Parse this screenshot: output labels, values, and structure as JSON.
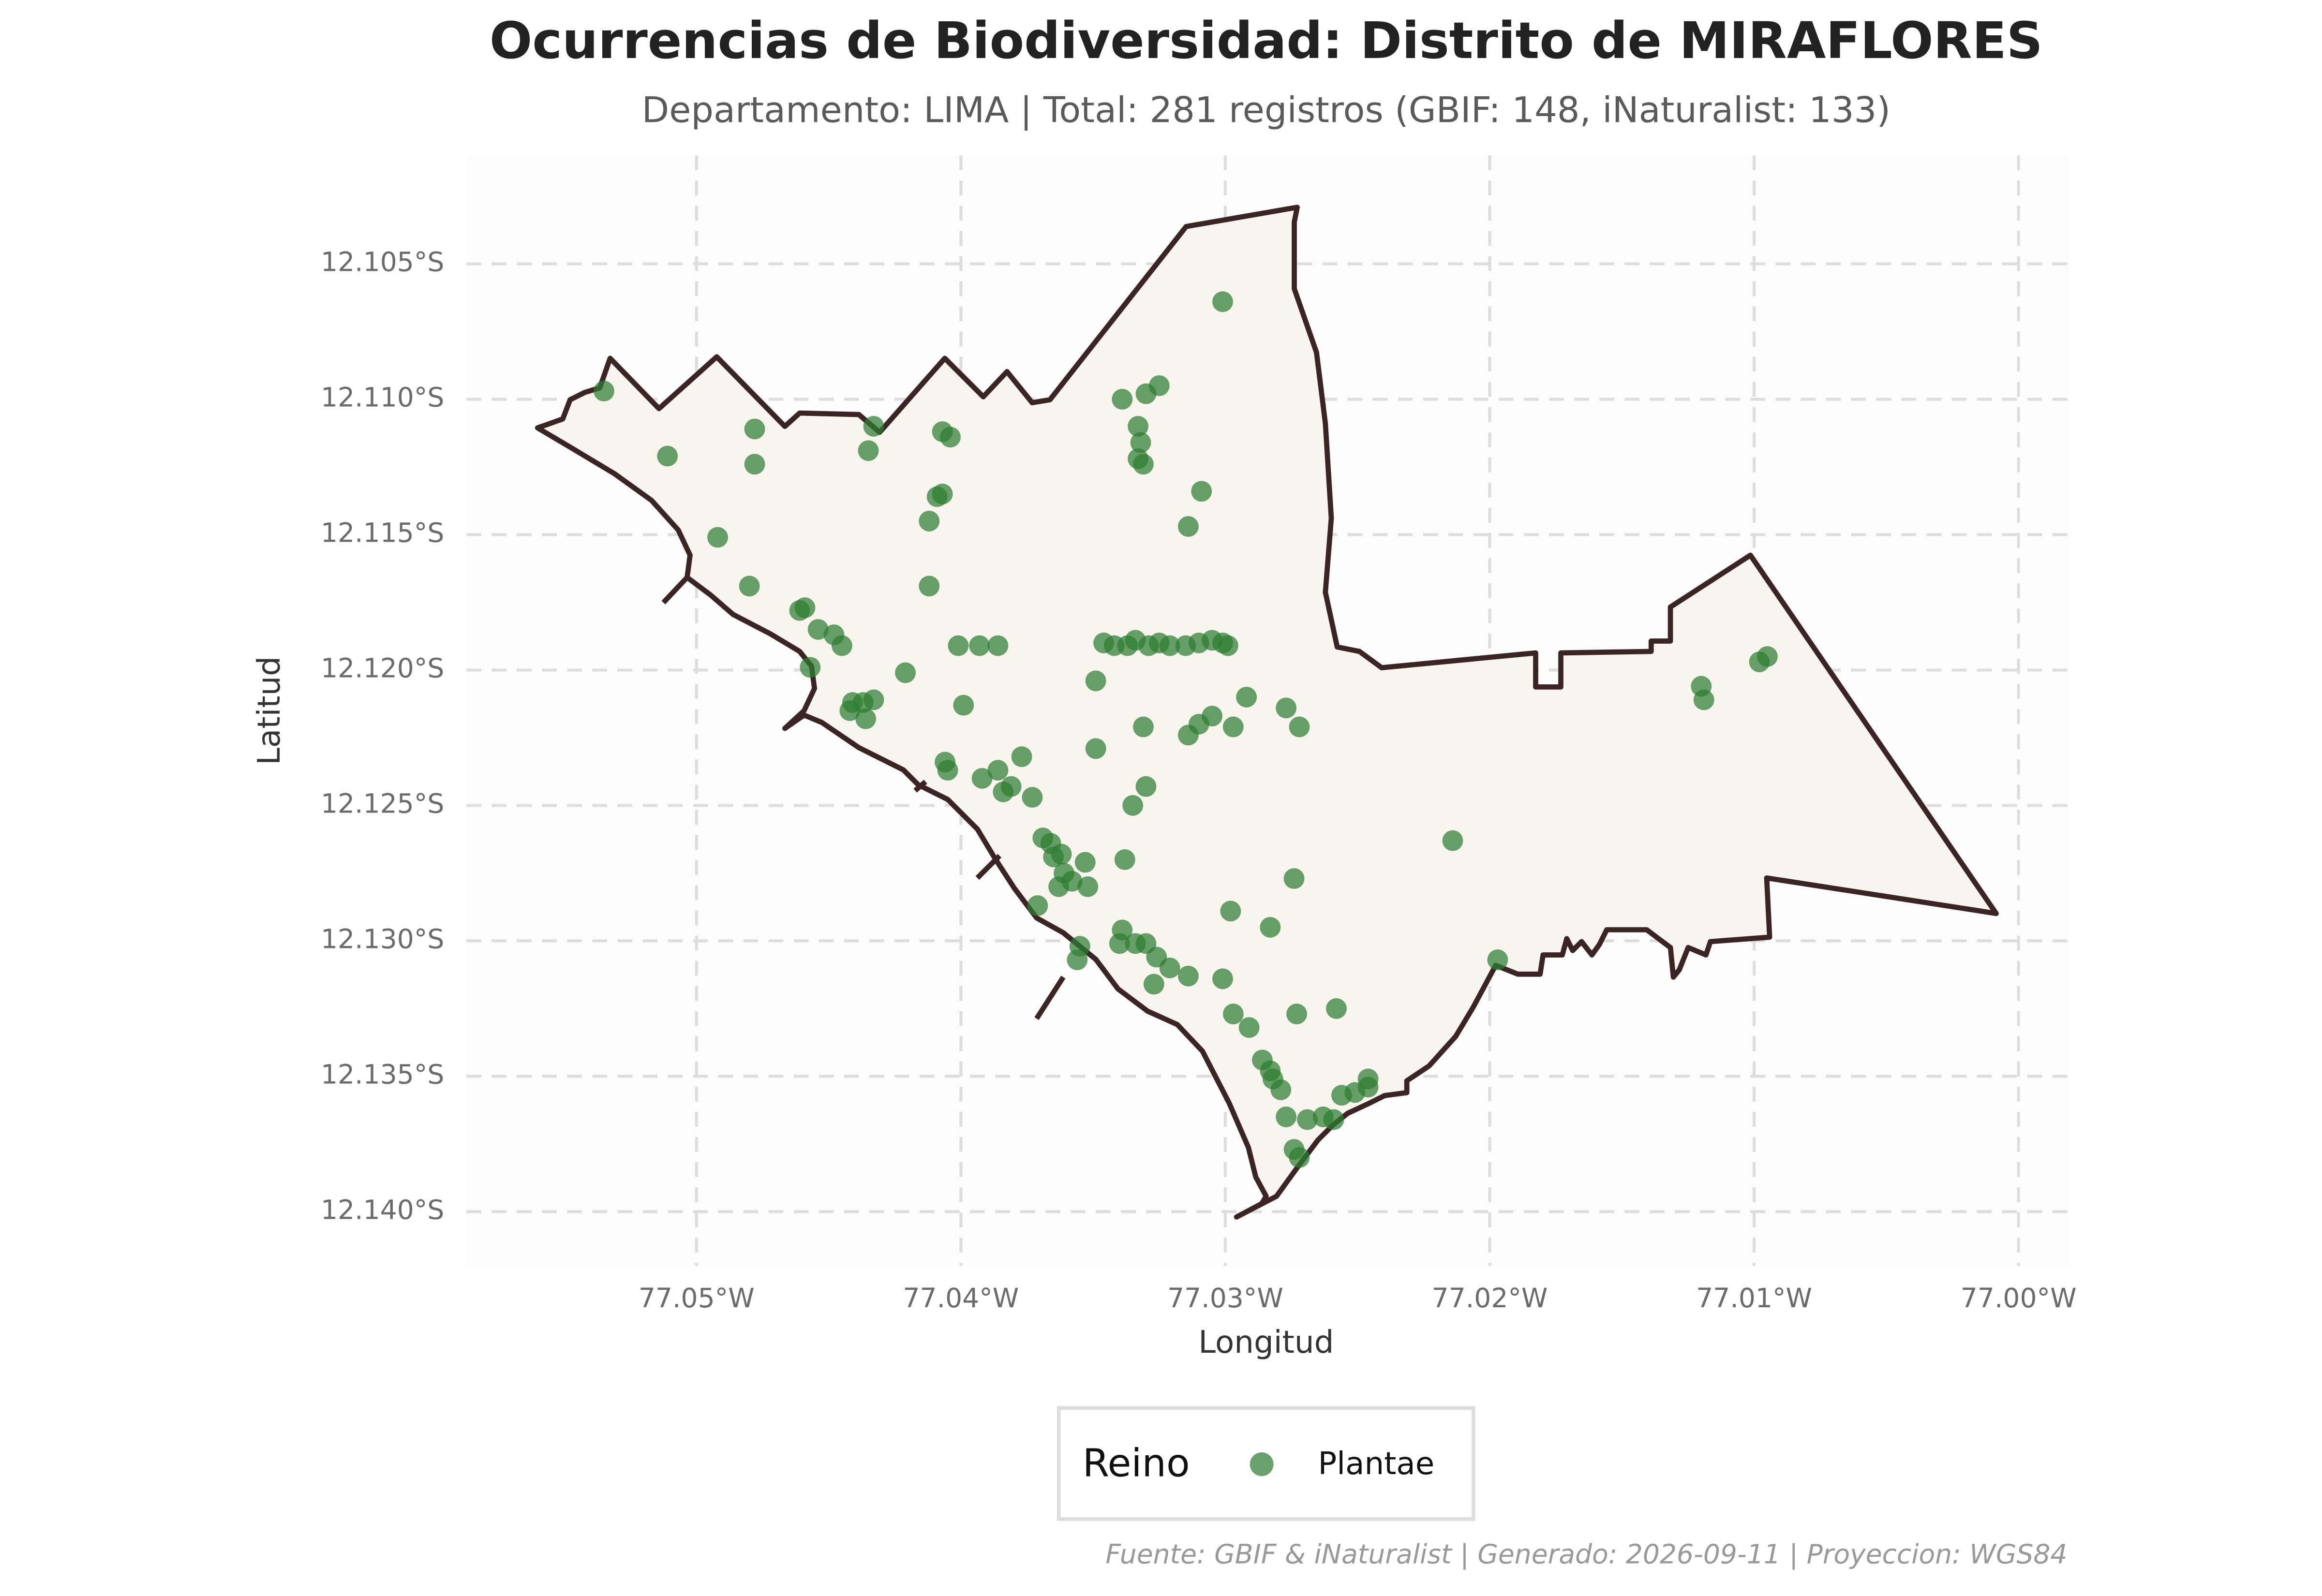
{
  "chart_data": {
    "type": "scatter",
    "title": "Ocurrencias de Biodiversidad: Distrito de MIRAFLORES",
    "subtitle": "Departamento: LIMA | Total: 281 registros (GBIF: 148, iNaturalist: 133)",
    "xlabel": "Longitud",
    "ylabel": "Latitud",
    "footnote": "Fuente: GBIF & iNaturalist | Generado: 2026-09-11 | Proyeccion: WGS84",
    "legend_title": "Reino",
    "legend": "bottom",
    "grid": true,
    "xlim": [
      -77.0587,
      -76.9981
    ],
    "ylim": [
      -12.142,
      -12.101
    ],
    "xticks": [
      {
        "value": -77.05,
        "label": "77.05°W"
      },
      {
        "value": -77.04,
        "label": "77.04°W"
      },
      {
        "value": -77.03,
        "label": "77.03°W"
      },
      {
        "value": -77.02,
        "label": "77.02°W"
      },
      {
        "value": -77.01,
        "label": "77.01°W"
      },
      {
        "value": -77.0,
        "label": "77.00°W"
      }
    ],
    "yticks": [
      {
        "value": -12.105,
        "label": "12.105°S"
      },
      {
        "value": -12.11,
        "label": "12.110°S"
      },
      {
        "value": -12.115,
        "label": "12.115°S"
      },
      {
        "value": -12.12,
        "label": "12.120°S"
      },
      {
        "value": -12.125,
        "label": "12.125°S"
      },
      {
        "value": -12.13,
        "label": "12.130°S"
      },
      {
        "value": -12.135,
        "label": "12.135°S"
      },
      {
        "value": -12.14,
        "label": "12.140°S"
      }
    ],
    "series": [
      {
        "name": "Plantae",
        "color": "#2e7d32",
        "x": [
          -77.0535,
          -77.0511,
          -77.0478,
          -77.0478,
          -77.0492,
          -77.048,
          -77.0461,
          -77.0459,
          -77.0454,
          -77.0448,
          -77.0445,
          -77.0457,
          -77.0433,
          -77.0435,
          -77.0407,
          -77.0404,
          -77.0407,
          -77.0409,
          -77.0412,
          -77.0412,
          -77.0401,
          -77.0393,
          -77.0386,
          -77.0421,
          -77.0399,
          -77.0441,
          -77.0437,
          -77.0433,
          -77.0442,
          -77.0436,
          -77.0406,
          -77.0405,
          -77.0392,
          -77.0386,
          -77.0384,
          -77.0381,
          -77.0377,
          -77.0373,
          -77.0349,
          -77.0349,
          -77.0339,
          -77.033,
          -77.0325,
          -77.0333,
          -77.0332,
          -77.0333,
          -77.0331,
          -77.0309,
          -77.0314,
          -77.0301,
          -77.0346,
          -77.0342,
          -77.0337,
          -77.0334,
          -77.0329,
          -77.0325,
          -77.0321,
          -77.0315,
          -77.031,
          -77.0305,
          -77.0301,
          -77.0299,
          -77.0292,
          -77.0305,
          -77.031,
          -77.0314,
          -77.0297,
          -77.0331,
          -77.0277,
          -77.0272,
          -77.0335,
          -77.033,
          -77.0369,
          -77.0366,
          -77.0365,
          -77.0362,
          -77.0361,
          -77.0363,
          -77.0358,
          -77.0353,
          -77.0352,
          -77.0338,
          -77.0371,
          -77.0355,
          -77.0356,
          -77.0339,
          -77.034,
          -77.0334,
          -77.033,
          -77.0326,
          -77.0321,
          -77.0327,
          -77.0314,
          -77.0298,
          -77.0301,
          -77.0297,
          -77.0291,
          -77.0274,
          -77.0283,
          -77.0273,
          -77.0258,
          -77.0286,
          -77.0283,
          -77.0282,
          -77.0279,
          -77.0277,
          -77.0269,
          -77.0263,
          -77.0259,
          -77.0274,
          -77.0272,
          -77.0256,
          -77.0251,
          -77.0246,
          -77.0246,
          -77.0214,
          -77.0197,
          -77.012,
          -77.0119,
          -77.0098,
          -77.0095
        ],
        "y": [
          -12.1097,
          -12.1121,
          -12.1111,
          -12.1124,
          -12.1151,
          -12.1169,
          -12.1178,
          -12.1177,
          -12.1185,
          -12.1187,
          -12.1191,
          -12.1199,
          -12.111,
          -12.1119,
          -12.1112,
          -12.1114,
          -12.1135,
          -12.1136,
          -12.1145,
          -12.1169,
          -12.1191,
          -12.1191,
          -12.1191,
          -12.1201,
          -12.1213,
          -12.1212,
          -12.1212,
          -12.1211,
          -12.1215,
          -12.1218,
          -12.1234,
          -12.1237,
          -12.124,
          -12.1237,
          -12.1245,
          -12.1243,
          -12.1232,
          -12.1247,
          -12.1204,
          -12.1229,
          -12.11,
          -12.1098,
          -12.1095,
          -12.111,
          -12.1116,
          -12.1122,
          -12.1124,
          -12.1134,
          -12.1147,
          -12.1064,
          -12.119,
          -12.1191,
          -12.1191,
          -12.1189,
          -12.1191,
          -12.119,
          -12.1191,
          -12.1191,
          -12.119,
          -12.1189,
          -12.119,
          -12.1191,
          -12.121,
          -12.1217,
          -12.122,
          -12.1224,
          -12.1221,
          -12.1221,
          -12.1214,
          -12.1221,
          -12.125,
          -12.1243,
          -12.1262,
          -12.1264,
          -12.1269,
          -12.1268,
          -12.1275,
          -12.128,
          -12.1278,
          -12.1271,
          -12.128,
          -12.127,
          -12.1287,
          -12.1302,
          -12.1307,
          -12.1296,
          -12.1301,
          -12.1301,
          -12.1301,
          -12.1306,
          -12.131,
          -12.1316,
          -12.1313,
          -12.1289,
          -12.1314,
          -12.1327,
          -12.1332,
          -12.1277,
          -12.1295,
          -12.1327,
          -12.1325,
          -12.1344,
          -12.1348,
          -12.1351,
          -12.1355,
          -12.1365,
          -12.1366,
          -12.1365,
          -12.1366,
          -12.1377,
          -12.138,
          -12.1357,
          -12.1356,
          -12.1354,
          -12.1351,
          -12.1263,
          -12.1307,
          -12.1206,
          -12.1211,
          -12.1197,
          -12.1195
        ]
      }
    ]
  }
}
